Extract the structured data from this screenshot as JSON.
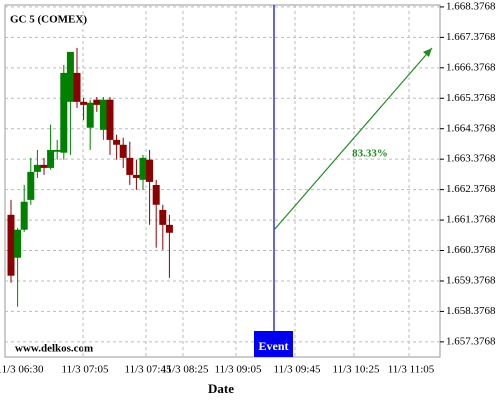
{
  "chart_data": {
    "type": "candlestick",
    "title": "GC 5 (COMEX)",
    "x_label": "Date",
    "watermark": "www.delkos.com",
    "event_label": "Event",
    "annotation": "83.33%",
    "time_labels": [
      "11/3 06:30",
      "11/3 07:05",
      "11/3 07:45",
      "11/3 08:25",
      "11/3 09:05",
      "11/3 09:45",
      "11/3 10:25",
      "11/3 11:05"
    ],
    "up_color": "#008000",
    "down_color": "#8b0000",
    "open": [
      1661.55,
      1660.14,
      1661.06,
      1662.04,
      1662.96,
      1663.19,
      1663.09,
      1663.62,
      1663.59,
      1665.26,
      1666.21,
      1665.26,
      1664.41,
      1665.33,
      1664.34,
      1665.33,
      1664.01,
      1663.85,
      1663.42,
      1662.86,
      1662.7,
      1663.36,
      1662.53,
      1661.71,
      1661.22
    ],
    "high": [
      1662.04,
      1661.12,
      1662.53,
      1663.42,
      1663.68,
      1663.42,
      1664.51,
      1664.01,
      1666.47,
      1666.9,
      1667.03,
      1665.39,
      1665.33,
      1665.42,
      1665.42,
      1665.42,
      1664.18,
      1664.08,
      1663.95,
      1663.36,
      1663.52,
      1663.68,
      1662.7,
      1661.88,
      1661.55
    ],
    "low": [
      1659.32,
      1658.53,
      1660.99,
      1661.88,
      1662.76,
      1662.86,
      1663.03,
      1663.36,
      1663.36,
      1663.52,
      1665.06,
      1664.67,
      1663.68,
      1664.93,
      1664.01,
      1663.52,
      1663.36,
      1663.09,
      1662.53,
      1662.37,
      1662.37,
      1661.22,
      1660.47,
      1660.4,
      1659.48
    ],
    "close": [
      1659.55,
      1661.06,
      1661.98,
      1662.96,
      1663.19,
      1663.09,
      1663.68,
      1663.68,
      1666.21,
      1666.9,
      1665.26,
      1665.16,
      1665.23,
      1665.16,
      1665.33,
      1664.01,
      1663.85,
      1663.42,
      1662.86,
      1662.76,
      1663.42,
      1662.63,
      1661.88,
      1661.22,
      1660.96
    ],
    "ylim": [
      1656.88,
      1668.44
    ],
    "yticks": [
      {
        "value": 1657.3768,
        "label": "1.657.3768"
      },
      {
        "value": 1658.3768,
        "label": "1.658.3768"
      },
      {
        "value": 1659.3768,
        "label": "1.659.3768"
      },
      {
        "value": 1660.3768,
        "label": "1.660.3768"
      },
      {
        "value": 1661.3768,
        "label": "1.661.3768"
      },
      {
        "value": 1662.3768,
        "label": "1.662.3768"
      },
      {
        "value": 1663.3768,
        "label": "1.663.3768"
      },
      {
        "value": 1664.3768,
        "label": "1.664.3768"
      },
      {
        "value": 1665.3768,
        "label": "1.665.3768"
      },
      {
        "value": 1666.3768,
        "label": "1.666.3768"
      },
      {
        "value": 1667.3768,
        "label": "1.667.3768"
      },
      {
        "value": 1668.3768,
        "label": "1.668.3768"
      }
    ],
    "grid": true
  }
}
